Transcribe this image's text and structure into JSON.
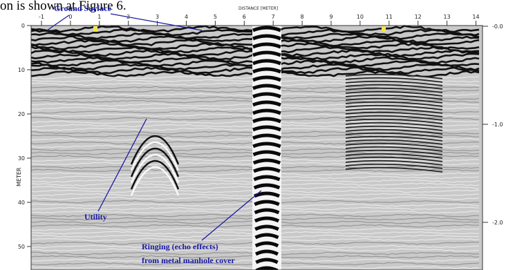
{
  "caption": "on is shown at Figure 6.",
  "radargram": {
    "x_axis_title": "DISTANCE [METER]",
    "x_ticks": [
      "-1",
      "0",
      "1",
      "2",
      "3",
      "4",
      "5",
      "6",
      "7",
      "8",
      "9",
      "10",
      "11",
      "12",
      "13",
      "14"
    ],
    "left_axis_title": "METER",
    "left_ticks": [
      "0",
      "10",
      "20",
      "30",
      "40",
      "50"
    ],
    "right_ticks": [
      "-0.0",
      "-1.0",
      "-2.0"
    ]
  },
  "annotations": {
    "ground_surface": "Ground Surface",
    "utility": "Utility",
    "ringing_line1": "Ringing (echo effects)",
    "ringing_line2": "from metal manhole cover"
  }
}
